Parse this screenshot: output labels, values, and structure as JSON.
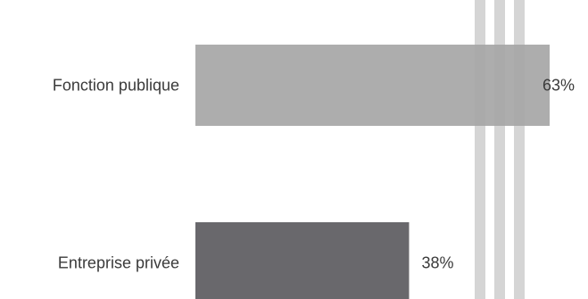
{
  "chart_data": {
    "type": "bar",
    "orientation": "horizontal",
    "categories": [
      "Fonction publique",
      "Entreprise privée"
    ],
    "values": [
      63,
      38
    ],
    "value_labels": [
      "63%",
      "38%"
    ],
    "unit": "%",
    "xlim": [
      0,
      100
    ],
    "colors": [
      "#a6a6a6",
      "#69686c"
    ],
    "stripe_color": "#b9b9b9",
    "title": "",
    "xlabel": "",
    "ylabel": "",
    "grid": false,
    "legend": "none"
  }
}
